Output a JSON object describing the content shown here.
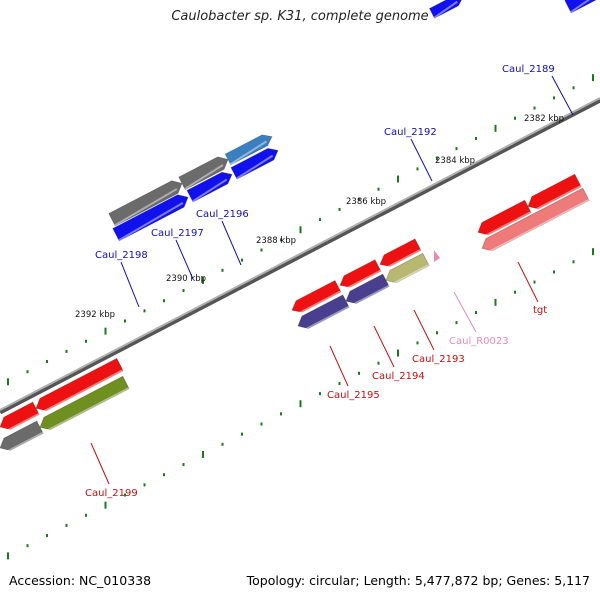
{
  "title": "Caulobacter sp. K31, complete genome",
  "footer": {
    "accession": "Accession: NC_010338",
    "summary": "Topology: circular; Length: 5,477,872 bp; Genes: 5,117"
  },
  "colors": {
    "backbone": "#8a8a8a",
    "tick": "#1a7a1a",
    "forward_label": "#1010b0",
    "reverse_label": "#c01010",
    "rna_label": "#e88ab8",
    "gene_red": "#ee1111",
    "gene_blue": "#1111ee",
    "gene_gray": "#6b6b6b",
    "gene_steelblue": "#3a7fc0",
    "gene_purple": "#4a3f8f",
    "gene_olive": "#b9b870",
    "gene_green": "#6f8f20",
    "gene_salmon": "#ee7a7a"
  },
  "scale_labels": [
    "2382 kbp",
    "2384 kbp",
    "2386 kbp",
    "2388 kbp",
    "2390 kbp",
    "2392 kbp"
  ],
  "gene_labels": {
    "forward": [
      "Caul_2189",
      "Caul_2192",
      "Caul_2196",
      "Caul_2197",
      "Caul_2198"
    ],
    "reverse": [
      "tgt",
      "Caul_R0023",
      "Caul_2193",
      "Caul_2194",
      "Caul_2195",
      "Caul_2199"
    ]
  }
}
